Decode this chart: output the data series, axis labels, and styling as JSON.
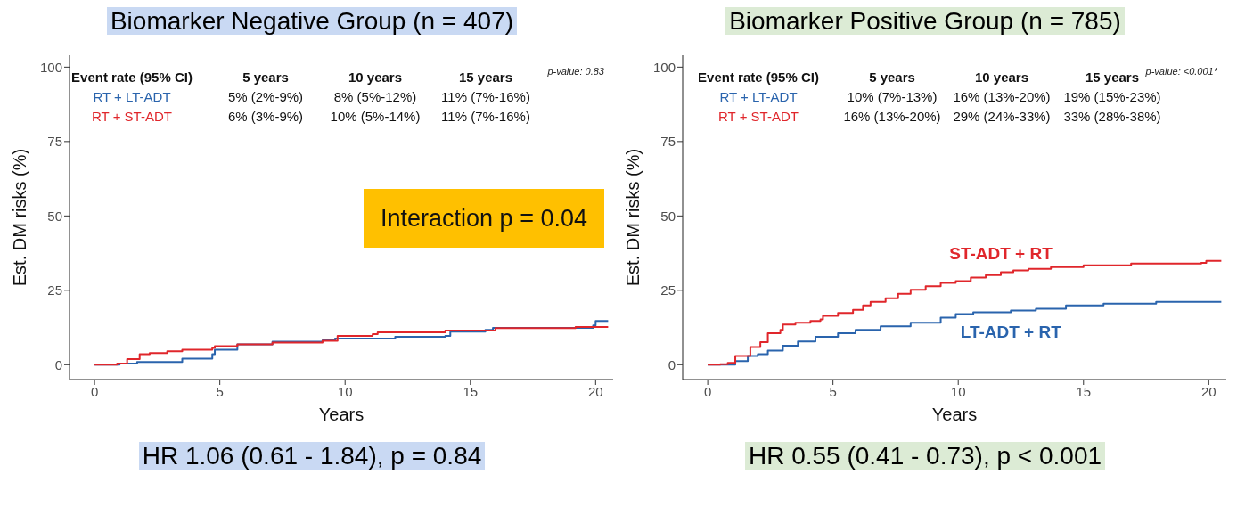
{
  "chart_data": [
    {
      "type": "step",
      "title": "Biomarker Negative Group (n = 407)",
      "xlabel": "Years",
      "ylabel": "Est. DM risks (%)",
      "xlim": [
        -1,
        20.7
      ],
      "xticks": [
        0,
        5,
        10,
        15,
        20
      ],
      "ylim": [
        -5,
        104
      ],
      "yticks": [
        0,
        25,
        50,
        75,
        100
      ],
      "marker": "none",
      "line_style": "solid",
      "series": [
        {
          "color": "#2a64ad",
          "x": [
            0,
            1,
            1.7,
            3,
            3.5,
            4.7,
            4.8,
            5.7,
            7.1,
            9.1,
            9.6,
            12,
            14,
            14.2,
            15.6,
            15.9,
            19.9,
            20,
            20.5
          ],
          "values": [
            0,
            0.4,
            0.9,
            0.9,
            2,
            3.5,
            5,
            6.8,
            7.7,
            8.2,
            8.8,
            9.4,
            9.7,
            11.1,
            11.7,
            12.4,
            13.2,
            14.7,
            14.7
          ]
        },
        {
          "color": "#e0262b",
          "x": [
            0,
            0.6,
            0.9,
            1.3,
            1.8,
            2.2,
            2.9,
            3.5,
            4.7,
            4.8,
            5.7,
            7.1,
            9.1,
            9.7,
            11.1,
            11.3,
            14,
            16,
            19.2,
            20.5
          ],
          "values": [
            0,
            0,
            0.4,
            1.9,
            3.5,
            3.9,
            4.5,
            5,
            5.6,
            6.2,
            6.8,
            7.4,
            8,
            9.7,
            10.3,
            10.9,
            11.5,
            12.3,
            12.7,
            12.7
          ]
        }
      ],
      "annotations": [
        "p-value: 0.83",
        "Event rate (95% CI)",
        "5 years",
        "10 years",
        "15 years",
        "RT + LT-ADT",
        "5% (2%-9%)",
        "8% (5%-12%)",
        "11% (7%-16%)",
        "RT + ST-ADT",
        "6% (3%-9%)",
        "10% (5%-14%)",
        "11% (7%-16%)",
        "HR 1.06 (0.61 - 1.84), p = 0.84",
        "Interaction p = 0.04"
      ]
    },
    {
      "type": "step",
      "title": "Biomarker Positive Group (n = 785)",
      "xlabel": "Years",
      "ylabel": "Est. DM risks (%)",
      "xlim": [
        -1,
        20.7
      ],
      "xticks": [
        0,
        5,
        10,
        15,
        20
      ],
      "ylim": [
        -5,
        104
      ],
      "yticks": [
        0,
        25,
        50,
        75,
        100
      ],
      "marker": "none",
      "line_style": "solid",
      "series": [
        {
          "name": "LT-ADT + RT",
          "color": "#2a64ad",
          "x": [
            0,
            0.8,
            1.1,
            1.6,
            2,
            2.4,
            3,
            3.6,
            4.3,
            5.2,
            5.9,
            6.9,
            8.1,
            9.3,
            9.9,
            10.6,
            12.1,
            13.1,
            14.3,
            15.8,
            17.9,
            20.5
          ],
          "values": [
            0,
            0,
            1.2,
            2.9,
            3.5,
            4.7,
            6.4,
            7.8,
            9.4,
            10.6,
            11.7,
            12.9,
            14.1,
            15.8,
            17,
            17.6,
            18.2,
            18.8,
            19.9,
            20.5,
            21.1,
            21.1
          ]
        },
        {
          "name": "ST-ADT + RT",
          "color": "#e0262b",
          "x": [
            0,
            0.5,
            0.8,
            1.1,
            1.7,
            2.1,
            2.4,
            2.9,
            3,
            3.5,
            4.1,
            4.5,
            4.6,
            5.2,
            5.8,
            6.2,
            6.5,
            7.1,
            7.6,
            8.1,
            8.7,
            9.3,
            9.9,
            10.5,
            11.1,
            11.7,
            12.2,
            12.8,
            13.7,
            15,
            16.9,
            19.7,
            19.9,
            20.5
          ],
          "values": [
            0,
            0.2,
            0.6,
            2.9,
            5.9,
            7.6,
            10.6,
            11.7,
            13.5,
            14.1,
            14.7,
            15.2,
            16.4,
            17.4,
            18.4,
            19.9,
            21.1,
            22.3,
            23.8,
            25.2,
            26.4,
            27.5,
            28.1,
            29.3,
            30.1,
            31.1,
            31.7,
            32.2,
            32.8,
            33.4,
            34,
            34.2,
            34.9,
            34.9
          ]
        }
      ],
      "annotations": [
        "p-value: <0.001*",
        "Event rate (95% CI)",
        "5 years",
        "10 years",
        "15 years",
        "RT + LT-ADT",
        "10% (7%-13%)",
        "16% (13%-20%)",
        "19% (15%-23%)",
        "RT + ST-ADT",
        "16% (13%-20%)",
        "29% (24%-33%)",
        "33% (28%-38%)",
        "HR 0.55 (0.41 - 0.73), p < 0.001"
      ]
    }
  ]
}
